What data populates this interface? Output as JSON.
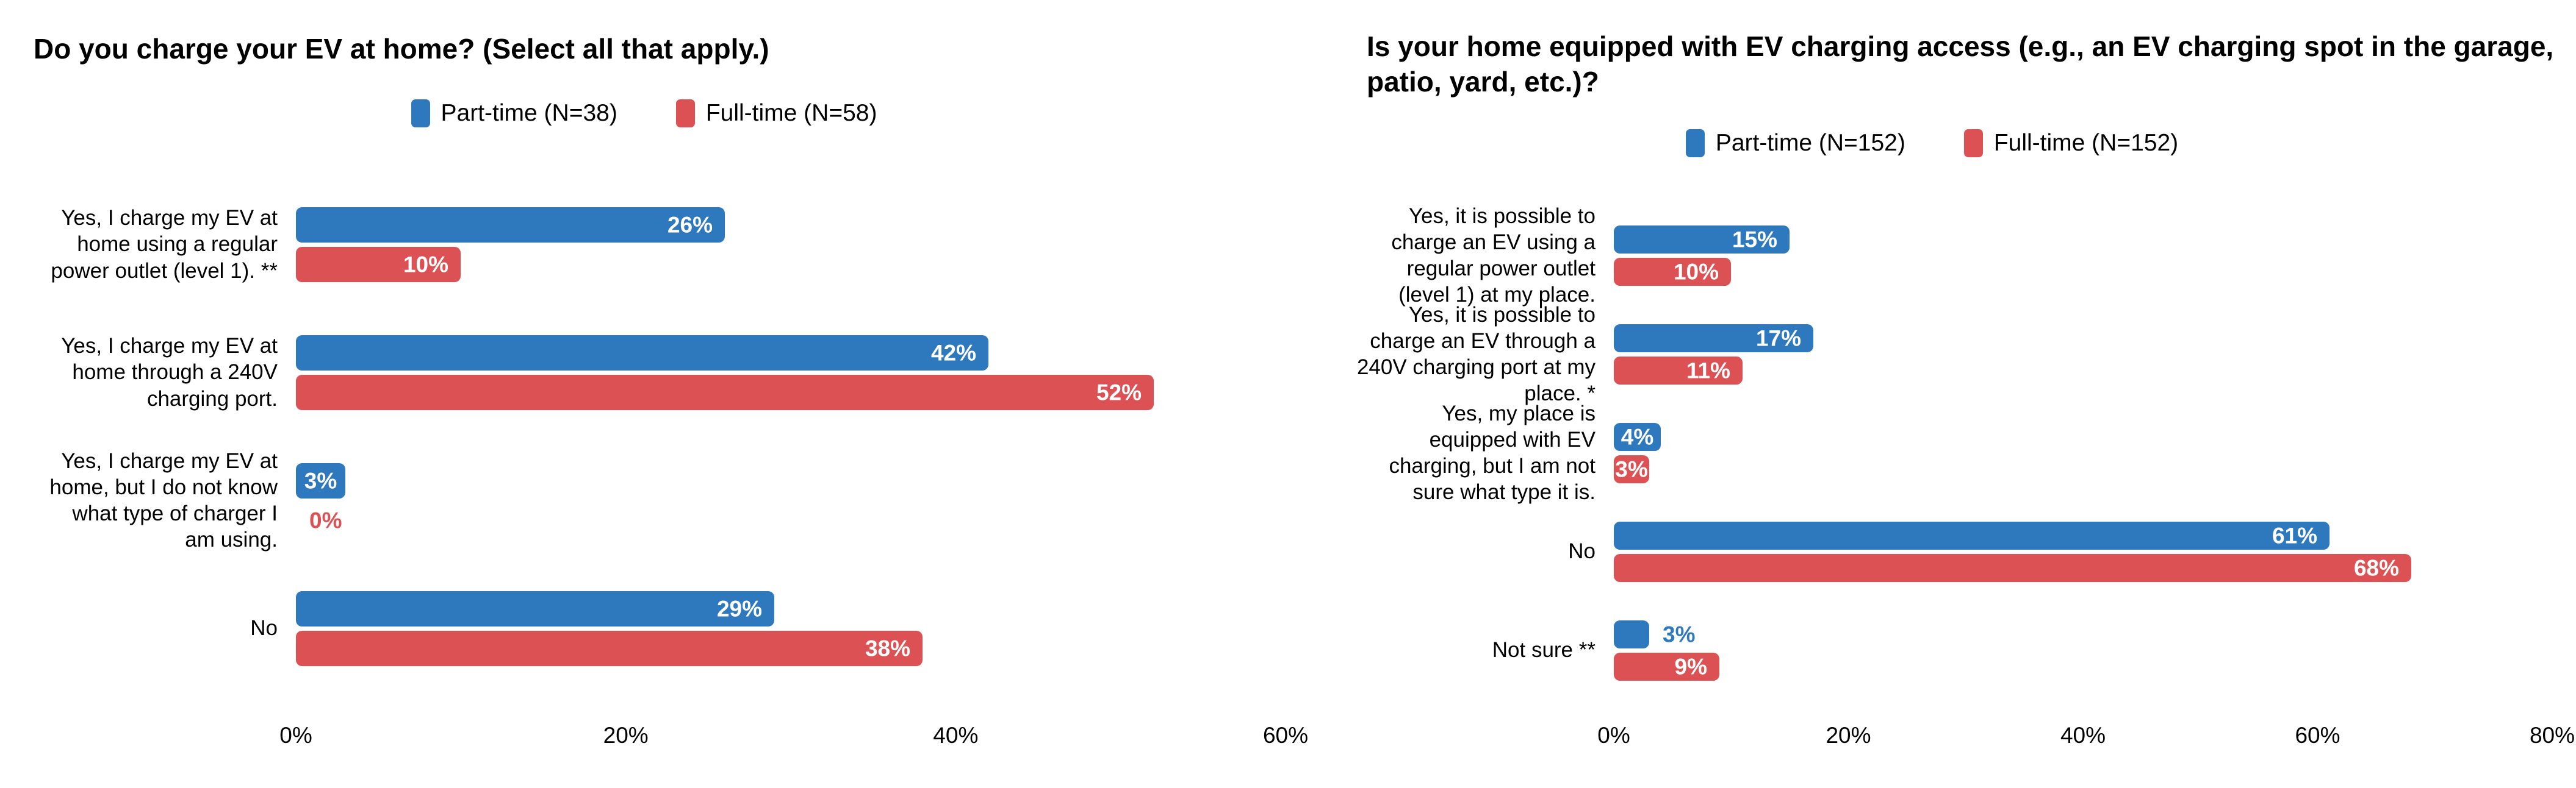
{
  "page": {
    "background": "#ffffff"
  },
  "colors": {
    "part_time": "#2e79be",
    "full_time": "#dc5254",
    "label_text": "#000000",
    "value_text_inside": "#ffffff"
  },
  "chart_data": [
    {
      "type": "bar",
      "orientation": "horizontal",
      "title": "Do you charge your EV at home? (Select all that apply.)",
      "legend_position": "top",
      "grid": false,
      "xlim": [
        0,
        60
      ],
      "x_tick_values": [
        0,
        20,
        40,
        60
      ],
      "x_ticks": [
        "0%",
        "20%",
        "40%",
        "60%"
      ],
      "categories": [
        "Yes, I charge my EV at home using a regular power outlet (level 1). **",
        "Yes, I charge my EV at home through a 240V charging port.",
        "Yes, I charge my EV at home, but I do not know what type of charger I am using.",
        "No"
      ],
      "series": [
        {
          "name": "Part-time (N=38)",
          "color": "#2e79be",
          "values": [
            26,
            42,
            3,
            29
          ],
          "labels": [
            "26%",
            "42%",
            "3%",
            "29%"
          ],
          "label_outside": [
            false,
            false,
            false,
            false
          ]
        },
        {
          "name": "Full-time (N=58)",
          "color": "#dc5254",
          "values": [
            10,
            52,
            0,
            38
          ],
          "labels": [
            "10%",
            "52%",
            "0%",
            "38%"
          ],
          "label_outside": [
            false,
            false,
            true,
            false
          ]
        }
      ]
    },
    {
      "type": "bar",
      "orientation": "horizontal",
      "title": "Is your home equipped with EV charging access (e.g., an EV charging spot in the garage, patio, yard, etc.)?",
      "legend_position": "top",
      "grid": false,
      "xlim": [
        0,
        80
      ],
      "x_tick_values": [
        0,
        20,
        40,
        60,
        80
      ],
      "x_ticks": [
        "0%",
        "20%",
        "40%",
        "60%",
        "80%"
      ],
      "categories": [
        "Yes, it is possible to charge an EV using a regular power outlet (level 1) at my place.",
        "Yes, it is possible to charge an EV through a 240V charging port at my place. *",
        "Yes, my place is equipped with EV charging, but I am not sure what type it is.",
        "No",
        "Not sure **"
      ],
      "series": [
        {
          "name": "Part-time (N=152)",
          "color": "#2e79be",
          "values": [
            15,
            17,
            4,
            61,
            3
          ],
          "labels": [
            "15%",
            "17%",
            "4%",
            "61%",
            "3%"
          ],
          "label_outside": [
            false,
            false,
            false,
            false,
            true
          ]
        },
        {
          "name": "Full-time (N=152)",
          "color": "#dc5254",
          "values": [
            10,
            11,
            3,
            68,
            9
          ],
          "labels": [
            "10%",
            "11%",
            "3%",
            "68%",
            "9%"
          ],
          "label_outside": [
            false,
            false,
            false,
            false,
            false
          ]
        }
      ]
    }
  ]
}
